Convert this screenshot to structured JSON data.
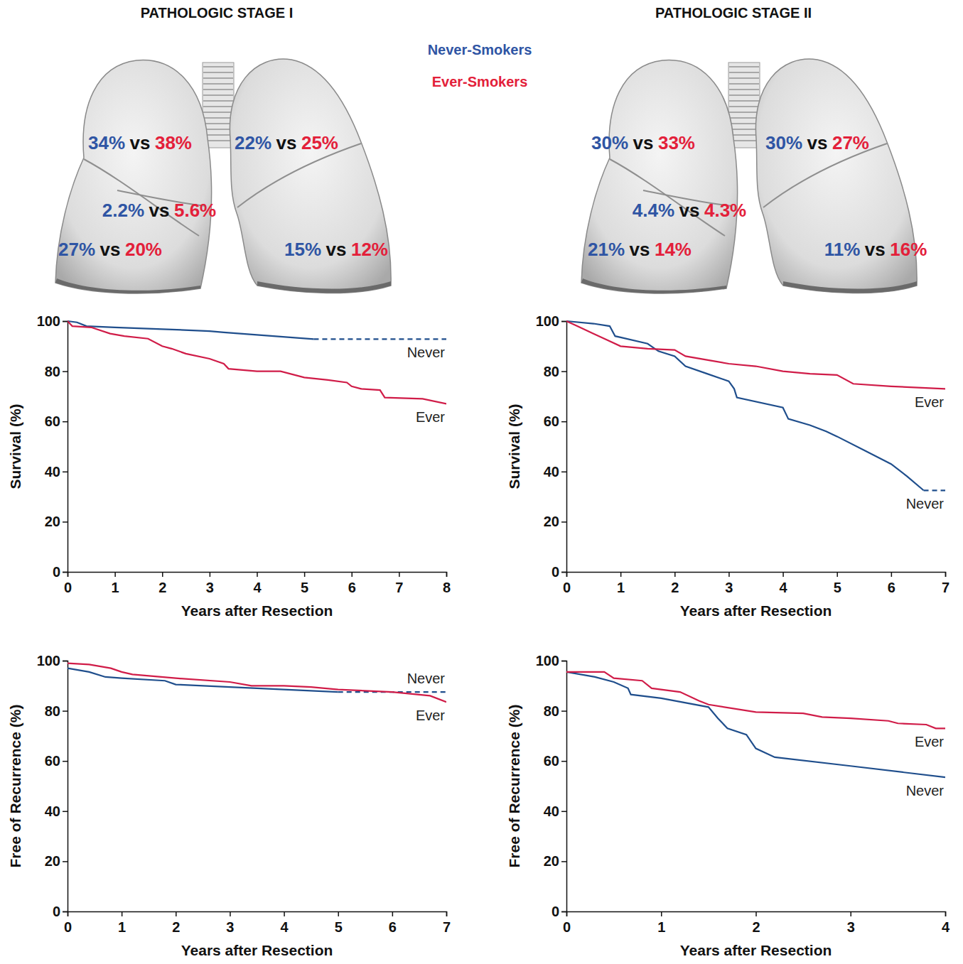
{
  "stages": [
    {
      "title": "PATHOLOGIC STAGE I",
      "lobes": [
        {
          "never": "34%",
          "ever": "38%"
        },
        {
          "never": "22%",
          "ever": "25%"
        },
        {
          "never": "2.2%",
          "ever": "5.6%"
        },
        {
          "never": "27%",
          "ever": "20%"
        },
        {
          "never": "15%",
          "ever": "12%"
        }
      ]
    },
    {
      "title": "PATHOLOGIC STAGE II",
      "lobes": [
        {
          "never": "30%",
          "ever": "33%"
        },
        {
          "never": "30%",
          "ever": "27%"
        },
        {
          "never": "4.4%",
          "ever": "4.3%"
        },
        {
          "never": "21%",
          "ever": "14%"
        },
        {
          "never": "11%",
          "ever": "16%"
        }
      ]
    }
  ],
  "separator": "vs",
  "key": [
    {
      "name": "Never-Smokers",
      "color": "#2f55a4"
    },
    {
      "name": "Ever-Smokers",
      "color": "#e3203a"
    }
  ],
  "chart_data": [
    {
      "type": "line",
      "xlabel": "Years after Resection",
      "ylabel": "Survival (%)",
      "xlim": [
        0,
        8
      ],
      "xticks": [
        0,
        1,
        2,
        3,
        4,
        5,
        6,
        7,
        8
      ],
      "ylim": [
        0,
        100
      ],
      "yticks": [
        0,
        20,
        40,
        60,
        80,
        100
      ],
      "series": [
        {
          "name": "Never",
          "color": "#1f4e8c",
          "x": [
            0,
            0.2,
            0.4,
            1,
            2,
            3,
            3.3,
            4,
            5.2
          ],
          "values": [
            100,
            99.5,
            98,
            97.5,
            96.8,
            96,
            95.5,
            94.5,
            92.8
          ]
        },
        {
          "color": "#1f4e8c",
          "line_style": "dashed",
          "x": [
            5.2,
            8
          ],
          "values": [
            92.8,
            92.8
          ]
        },
        {
          "name": "Ever",
          "color": "#d01c48",
          "x": [
            0,
            0.1,
            0.5,
            0.9,
            1.2,
            1.7,
            2,
            2.2,
            2.5,
            3,
            3.3,
            3.4,
            4,
            4.5,
            5,
            5.5,
            5.9,
            6,
            6.2,
            6.6,
            6.7,
            7.5,
            8
          ],
          "values": [
            100,
            98,
            97.5,
            95,
            94,
            93,
            90,
            89,
            87,
            85,
            83,
            81,
            80,
            80,
            77.5,
            76.5,
            75.5,
            74,
            73,
            72.5,
            69.5,
            69,
            67
          ]
        }
      ]
    },
    {
      "type": "line",
      "xlabel": "Years after Resection",
      "ylabel": "Survival (%)",
      "xlim": [
        0,
        7
      ],
      "xticks": [
        0,
        1,
        2,
        3,
        4,
        5,
        6,
        7
      ],
      "ylim": [
        0,
        100
      ],
      "yticks": [
        0,
        20,
        40,
        60,
        80,
        100
      ],
      "series": [
        {
          "name": "Never",
          "color": "#1f4e8c",
          "x": [
            0,
            0.5,
            0.8,
            0.9,
            1,
            1.5,
            1.7,
            2,
            2.2,
            2.6,
            3,
            3.1,
            3.15,
            4,
            4.1,
            4.5,
            4.8,
            5,
            5.5,
            6,
            6.3,
            6.6
          ],
          "values": [
            100,
            99,
            98,
            94,
            93.5,
            91,
            88,
            86,
            82,
            79,
            76,
            73,
            69.5,
            65.5,
            61,
            58.5,
            56,
            54,
            48.5,
            43,
            38,
            32.5
          ]
        },
        {
          "color": "#1f4e8c",
          "line_style": "dashed",
          "x": [
            6.6,
            7
          ],
          "values": [
            32.5,
            32.5
          ]
        },
        {
          "name": "Ever",
          "color": "#d01c48",
          "x": [
            0,
            0.2,
            0.5,
            0.7,
            1,
            1.5,
            2,
            2.2,
            3,
            3.5,
            4,
            4.5,
            5,
            5.3,
            6,
            6.5,
            7
          ],
          "values": [
            100,
            98,
            95,
            93,
            90,
            89,
            88.5,
            86,
            83,
            82,
            80,
            79,
            78.5,
            75,
            74,
            73.5,
            73
          ]
        }
      ]
    },
    {
      "type": "line",
      "xlabel": "Years after Resection",
      "ylabel": "Free of Recurrence (%)",
      "xlim": [
        0,
        7
      ],
      "xticks": [
        0,
        1,
        2,
        3,
        4,
        5,
        6,
        7
      ],
      "ylim": [
        0,
        100
      ],
      "yticks": [
        0,
        20,
        40,
        60,
        80,
        100
      ],
      "series": [
        {
          "name": "Never",
          "color": "#1f4e8c",
          "x": [
            0,
            0.4,
            0.7,
            1,
            1.8,
            2,
            3,
            4,
            5
          ],
          "values": [
            97,
            95.5,
            93.5,
            93,
            92,
            90.5,
            89.5,
            88.5,
            87.5
          ]
        },
        {
          "color": "#1f4e8c",
          "line_style": "dashed",
          "x": [
            5,
            7
          ],
          "values": [
            87.5,
            87.5
          ]
        },
        {
          "name": "Ever",
          "color": "#d01c48",
          "x": [
            0,
            0.4,
            0.8,
            1,
            1.2,
            2,
            3,
            3.4,
            4,
            4.5,
            5,
            6,
            6.7,
            7
          ],
          "values": [
            99,
            98.5,
            97,
            95.5,
            94.5,
            93,
            91.5,
            90,
            90,
            89.5,
            88.5,
            87.5,
            86,
            83.5
          ]
        }
      ]
    },
    {
      "type": "line",
      "xlabel": "Years after Resection",
      "ylabel": "Free of Recurrence (%)",
      "xlim": [
        0,
        4
      ],
      "xticks": [
        0,
        1,
        2,
        3,
        4
      ],
      "ylim": [
        0,
        100
      ],
      "yticks": [
        0,
        20,
        40,
        60,
        80,
        100
      ],
      "series": [
        {
          "name": "Never",
          "color": "#1f4e8c",
          "x": [
            0,
            0.3,
            0.5,
            0.65,
            0.68,
            1,
            1.5,
            1.6,
            1.7,
            1.9,
            2,
            2.2,
            3,
            4
          ],
          "values": [
            95.5,
            93.5,
            91.5,
            89,
            86.5,
            85,
            81.5,
            77,
            73,
            70.5,
            65,
            61.5,
            58,
            53.5
          ]
        },
        {
          "name": "Ever",
          "color": "#d01c48",
          "x": [
            0,
            0.4,
            0.5,
            0.8,
            0.9,
            1.2,
            1.4,
            1.5,
            2,
            2.5,
            2.7,
            3,
            3.4,
            3.5,
            3.8,
            3.9,
            4
          ],
          "values": [
            95.5,
            95.5,
            93,
            92,
            89,
            87.5,
            84,
            82.5,
            79.5,
            79,
            77.5,
            77,
            76,
            75,
            74.5,
            73,
            73
          ]
        }
      ]
    }
  ]
}
